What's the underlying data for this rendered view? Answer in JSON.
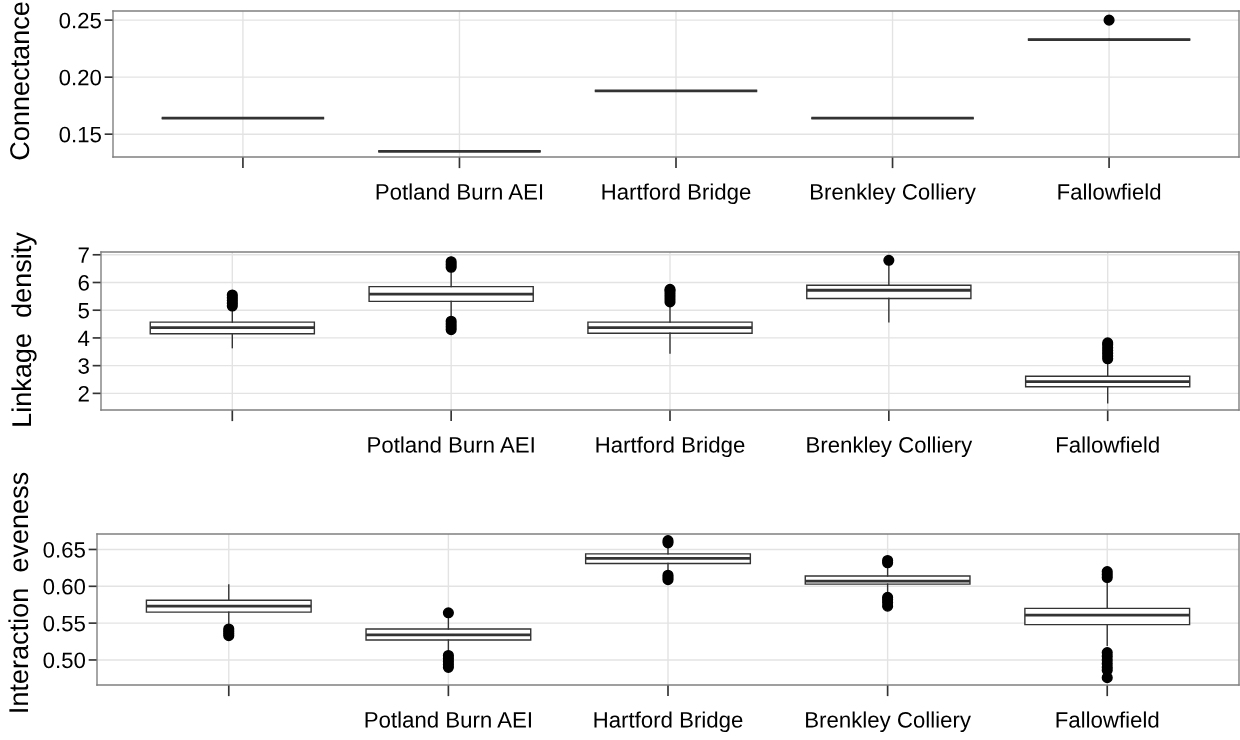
{
  "chart_data": [
    {
      "type": "box",
      "ylabel": "Connectance",
      "categories": [
        null,
        "Potland Burn AEI",
        "Hartford Bridge",
        "Brenkley Colliery",
        "Fallowfield"
      ],
      "boxes": [
        {
          "low": 0.164,
          "q1": 0.164,
          "median": 0.164,
          "q3": 0.164,
          "high": 0.164
        },
        {
          "low": 0.135,
          "q1": 0.135,
          "median": 0.135,
          "q3": 0.135,
          "high": 0.135
        },
        {
          "low": 0.188,
          "q1": 0.188,
          "median": 0.188,
          "q3": 0.188,
          "high": 0.188
        },
        {
          "low": 0.164,
          "q1": 0.164,
          "median": 0.164,
          "q3": 0.164,
          "high": 0.164
        },
        {
          "low": 0.233,
          "q1": 0.233,
          "median": 0.233,
          "q3": 0.233,
          "high": 0.233,
          "outliers": [
            0.25
          ]
        }
      ],
      "ylim": [
        0.13,
        0.258
      ],
      "yticks": [
        0.15,
        {
          "value": 0.2,
          "label": "0.20"
        },
        0.25
      ],
      "grid": true
    },
    {
      "type": "box",
      "ylabel": "Linkage  density",
      "categories": [
        null,
        "Potland Burn AEI",
        "Hartford Bridge",
        "Brenkley Colliery",
        "Fallowfield"
      ],
      "boxes": [
        {
          "low": 3.65,
          "q1": 4.15,
          "median": 4.37,
          "q3": 4.57,
          "high": 5.1,
          "outliers": [
            5.15,
            5.25,
            5.35,
            5.45,
            5.55
          ]
        },
        {
          "low": 4.7,
          "q1": 5.32,
          "median": 5.58,
          "q3": 5.85,
          "high": 6.4,
          "outliers": [
            4.3,
            4.4,
            4.5,
            4.6,
            6.55,
            6.65,
            6.75
          ]
        },
        {
          "low": 3.45,
          "q1": 4.17,
          "median": 4.37,
          "q3": 4.57,
          "high": 5.2,
          "outliers": [
            5.3,
            5.4,
            5.5,
            5.6,
            5.7,
            5.75
          ]
        },
        {
          "low": 4.58,
          "q1": 5.42,
          "median": 5.72,
          "q3": 5.9,
          "high": 6.7,
          "outliers": [
            6.8
          ]
        },
        {
          "low": 1.66,
          "q1": 2.24,
          "median": 2.42,
          "q3": 2.62,
          "high": 3.15,
          "outliers": [
            3.25,
            3.35,
            3.45,
            3.55,
            3.65,
            3.75,
            3.82
          ]
        }
      ],
      "ylim": [
        1.4,
        7.1
      ],
      "yticks": [
        2,
        3,
        4,
        5,
        6,
        7
      ],
      "grid": true
    },
    {
      "type": "box",
      "ylabel": "Interaction  eveness",
      "categories": [
        null,
        "Potland Burn AEI",
        "Hartford Bridge",
        "Brenkley Colliery",
        "Fallowfield"
      ],
      "boxes": [
        {
          "low": 0.548,
          "q1": 0.565,
          "median": 0.573,
          "q3": 0.581,
          "high": 0.602,
          "outliers": [
            0.533,
            0.536,
            0.539,
            0.542
          ]
        },
        {
          "low": 0.51,
          "q1": 0.527,
          "median": 0.534,
          "q3": 0.542,
          "high": 0.558,
          "outliers": [
            0.49,
            0.494,
            0.498,
            0.502,
            0.506,
            0.564
          ]
        },
        {
          "low": 0.62,
          "q1": 0.631,
          "median": 0.638,
          "q3": 0.644,
          "high": 0.655,
          "outliers": [
            0.609,
            0.612,
            0.615,
            0.659,
            0.662
          ]
        },
        {
          "low": 0.59,
          "q1": 0.603,
          "median": 0.607,
          "q3": 0.614,
          "high": 0.627,
          "outliers": [
            0.573,
            0.578,
            0.582,
            0.585,
            0.632,
            0.635
          ]
        },
        {
          "low": 0.52,
          "q1": 0.548,
          "median": 0.561,
          "q3": 0.57,
          "high": 0.605,
          "outliers": [
            0.476,
            0.486,
            0.49,
            0.495,
            0.5,
            0.505,
            0.51,
            0.612,
            0.616,
            0.62
          ]
        }
      ],
      "ylim": [
        0.466,
        0.671
      ],
      "yticks": [
        {
          "value": 0.5,
          "label": "0.50"
        },
        0.55,
        {
          "value": 0.6,
          "label": "0.60"
        },
        0.65
      ],
      "grid": true
    }
  ]
}
